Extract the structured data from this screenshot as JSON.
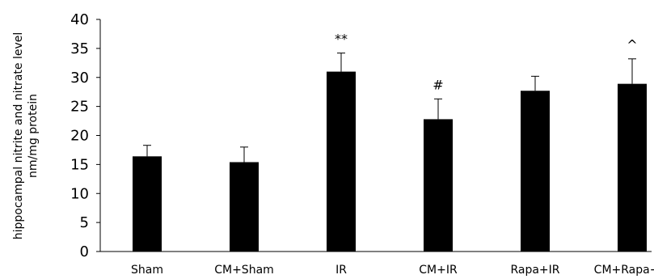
{
  "chart_data": {
    "type": "bar",
    "title": "",
    "ylabel_lines": [
      "hippocampal nitrite and nitrate level",
      "nm/mg protein"
    ],
    "xlabel": "",
    "categories": [
      "Sham",
      "CM+Sham",
      "IR",
      "CM+IR",
      "Rapa+IR",
      "CM+Rapa+IR"
    ],
    "values": [
      16.4,
      15.4,
      31.0,
      22.8,
      27.7,
      28.9
    ],
    "errors": [
      1.9,
      2.6,
      3.2,
      3.5,
      2.5,
      4.3
    ],
    "annotations": [
      "",
      "",
      "**",
      "#",
      "",
      "^"
    ],
    "ylim": [
      0,
      40
    ],
    "yticks": [
      0,
      5,
      10,
      15,
      20,
      25,
      30,
      35,
      40
    ],
    "grid": false,
    "bar_color": "#000000",
    "axis_color": "#000000"
  }
}
